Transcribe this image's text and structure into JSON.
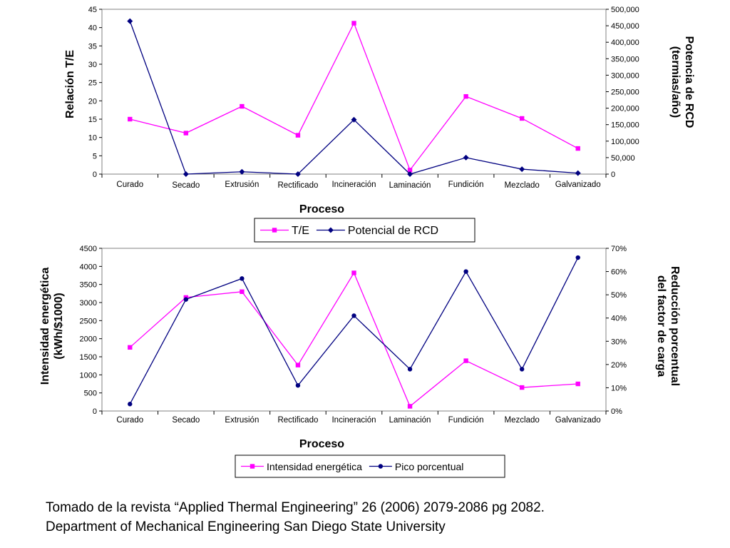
{
  "chart_data": [
    {
      "type": "line",
      "title": "",
      "xlabel": "Proceso",
      "ylabel": "Relación T/E",
      "y2label": "Potencia de RCD (termias/año)",
      "ylim": [
        0,
        45
      ],
      "y2lim": [
        0,
        500000
      ],
      "yticks": [
        "0",
        "5",
        "10",
        "15",
        "20",
        "25",
        "30",
        "35",
        "40",
        "45"
      ],
      "y2ticks": [
        "0",
        "50,000",
        "100,000",
        "150,000",
        "200,000",
        "250,000",
        "300,000",
        "350,000",
        "400,000",
        "450,000",
        "500,000"
      ],
      "categories": [
        "Curado",
        "Secado",
        "Extrusión",
        "Rectificado",
        "Incineración",
        "Laminación",
        "Fundición",
        "Mezclado",
        "Galvanizado"
      ],
      "legend_position": "bottom",
      "series": [
        {
          "name": "T/E",
          "axis": "left",
          "color": "#ff00ff",
          "marker": "square",
          "values": [
            15,
            11.2,
            18.5,
            10.6,
            41.2,
            1.1,
            21.2,
            15.2,
            7
          ]
        },
        {
          "name": "Potencial de RCD",
          "axis": "right",
          "color": "#000080",
          "marker": "diamond",
          "values": [
            464000,
            0,
            7000,
            0,
            165000,
            0,
            50000,
            15000,
            3000
          ]
        }
      ]
    },
    {
      "type": "line",
      "title": "",
      "xlabel": "Proceso",
      "ylabel": "Intensidad energética (kWh/$1000)",
      "y2label": "Reducción porcentual del factor de carga",
      "ylim": [
        0,
        4500
      ],
      "y2lim": [
        0,
        70
      ],
      "yticks": [
        "0",
        "500",
        "1000",
        "1500",
        "2000",
        "2500",
        "3000",
        "3500",
        "4000",
        "4500"
      ],
      "y2ticks": [
        "0%",
        "10%",
        "20%",
        "30%",
        "40%",
        "50%",
        "60%",
        "70%"
      ],
      "categories": [
        "Curado",
        "Secado",
        "Extrusión",
        "Rectificado",
        "Incineración",
        "Laminación",
        "Fundición",
        "Mezclado",
        "Galvanizado"
      ],
      "legend_position": "bottom",
      "series": [
        {
          "name": "Intensidad energética",
          "axis": "left",
          "color": "#ff00ff",
          "marker": "square",
          "values": [
            1760,
            3140,
            3300,
            1270,
            3820,
            130,
            1390,
            650,
            750
          ]
        },
        {
          "name": "Pico porcentual",
          "axis": "right",
          "color": "#000080",
          "marker": "circle",
          "values": [
            3,
            48,
            57,
            11,
            41,
            18,
            60,
            18,
            66
          ]
        }
      ]
    }
  ],
  "caption": {
    "line1": "Tomado de la revista “Applied Thermal Engineering” 26 (2006) 2079-2086 pg 2082.",
    "line2": "Department of Mechanical Engineering San Diego State University"
  }
}
